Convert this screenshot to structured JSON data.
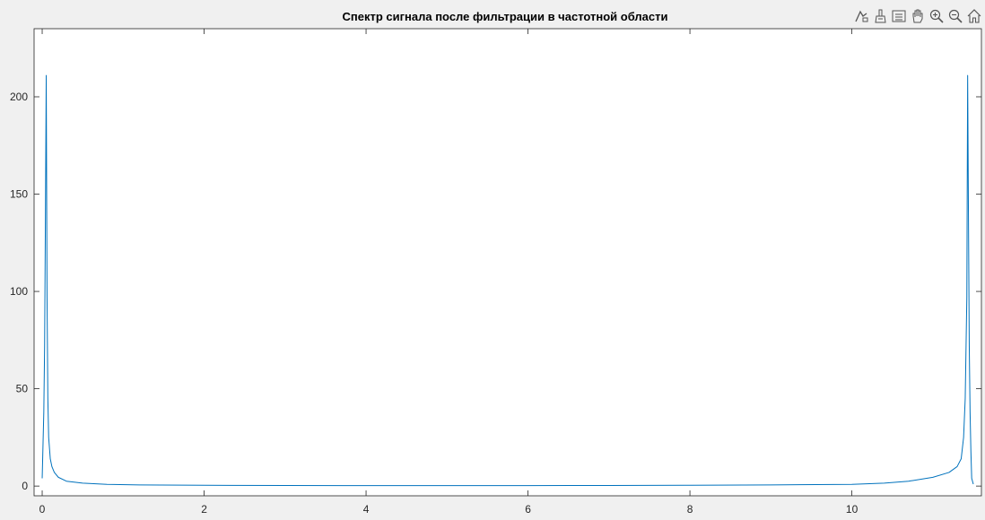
{
  "toolbar": {
    "icons": [
      "data-tips-icon",
      "brush-icon",
      "legend-icon",
      "pan-icon",
      "zoom-in-icon",
      "zoom-out-icon",
      "home-icon"
    ]
  },
  "chart_data": {
    "type": "line",
    "title": "Спектр сигнала после фильтрации в частотной области",
    "xlabel": "",
    "ylabel": "",
    "xlim": [
      -0.1,
      11.6
    ],
    "ylim": [
      -5,
      235
    ],
    "xticks": [
      0,
      2,
      4,
      6,
      8,
      10
    ],
    "yticks": [
      0,
      50,
      100,
      150,
      200
    ],
    "grid": false,
    "line_color": "#0072bd",
    "series": [
      {
        "name": "",
        "x": [
          0,
          0.02,
          0.03,
          0.04,
          0.05,
          0.06,
          0.07,
          0.08,
          0.1,
          0.12,
          0.15,
          0.2,
          0.3,
          0.5,
          0.8,
          1.2,
          2,
          3,
          4,
          5,
          6,
          7,
          8,
          9,
          10,
          10.4,
          10.7,
          11.0,
          11.2,
          11.3,
          11.35,
          11.38,
          11.4,
          11.42,
          11.43,
          11.44,
          11.45,
          11.46,
          11.47,
          11.48,
          11.5
        ],
        "y": [
          4,
          38,
          72,
          139,
          211,
          97,
          45,
          25,
          14,
          10,
          7,
          4.5,
          2.5,
          1.5,
          0.9,
          0.6,
          0.4,
          0.3,
          0.25,
          0.25,
          0.25,
          0.3,
          0.4,
          0.6,
          0.9,
          1.5,
          2.5,
          4.5,
          7,
          10,
          14,
          25,
          45,
          97,
          211,
          139,
          72,
          38,
          18,
          4,
          1
        ]
      }
    ]
  }
}
